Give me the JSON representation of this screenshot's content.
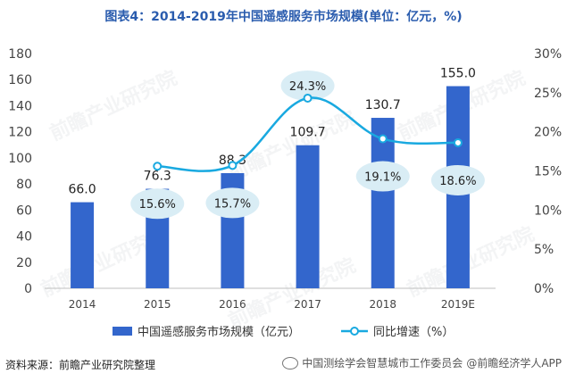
{
  "header": {
    "title": "图表4：2014-2019年中国遥感服务市场规模(单位：亿元，%)"
  },
  "chart_data": {
    "type": "bar",
    "categories": [
      "2014",
      "2015",
      "2016",
      "2017",
      "2018",
      "2019E"
    ],
    "series": [
      {
        "name": "中国遥感服务市场规模（亿元）",
        "type": "bar",
        "axis": "left",
        "values": [
          66.0,
          76.3,
          88.3,
          109.7,
          130.7,
          155.0
        ],
        "labels": [
          "66.0",
          "76.3",
          "88.3",
          "109.7",
          "130.7",
          "155.0"
        ],
        "color": "#3366cc"
      },
      {
        "name": "同比增速（%）",
        "type": "line",
        "axis": "right",
        "values": [
          null,
          15.6,
          15.7,
          24.3,
          19.1,
          18.6
        ],
        "labels": [
          "",
          "15.6%",
          "15.7%",
          "24.3%",
          "19.1%",
          "18.6%"
        ],
        "color": "#19a9e0"
      }
    ],
    "y_left": {
      "ylim": [
        0,
        180
      ],
      "ticks": [
        "0",
        "20",
        "40",
        "60",
        "80",
        "100",
        "120",
        "140",
        "160",
        "180"
      ]
    },
    "y_right": {
      "ylim": [
        0,
        30
      ],
      "ticks": [
        "0%",
        "5%",
        "10%",
        "15%",
        "20%",
        "25%",
        "30%"
      ]
    },
    "grid": false,
    "legend_position": "bottom"
  },
  "footer": {
    "source": "资料来源：前瞻产业研究院整理",
    "credit": "中国测绘学会智慧城市工作委员会",
    "app": "@前瞻经济学人APP"
  },
  "watermark": {
    "text": "前瞻产业研究院"
  },
  "colors": {
    "bar": "#3366cc",
    "line": "#19a9e0",
    "bubble": "#d9edf5",
    "title": "#2a5cae"
  }
}
